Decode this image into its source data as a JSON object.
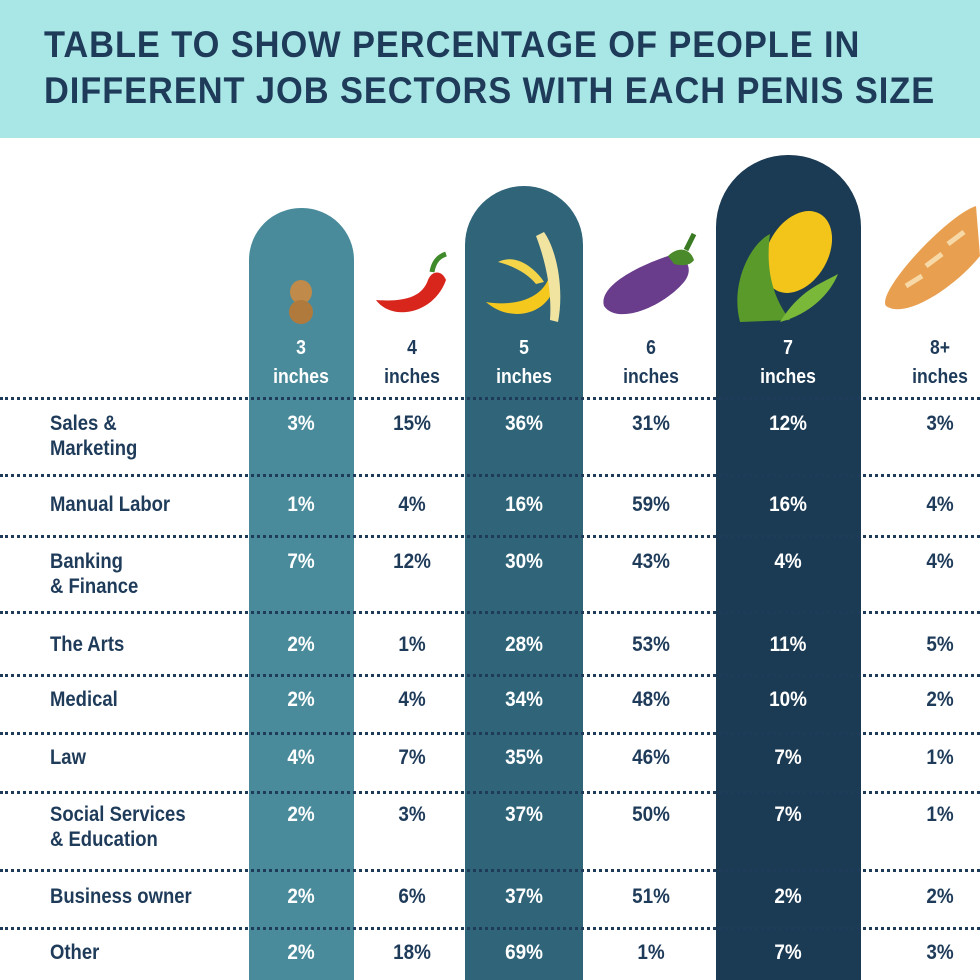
{
  "title": "TABLE TO SHOW PERCENTAGE OF PEOPLE IN\nDIFFERENT JOB SECTORS WITH EACH PENIS SIZE",
  "colors": {
    "banner": "#a9e7e6",
    "text": "#1f3b5a",
    "col_3in": "#4a8b9b",
    "col_5in": "#2f6479",
    "col_7in": "#1b3a53"
  },
  "chart_data": {
    "type": "table",
    "title": "TABLE TO SHOW PERCENTAGE OF PEOPLE IN DIFFERENT JOB SECTORS WITH EACH PENIS SIZE",
    "columns": [
      {
        "label": "3\ninches",
        "icon": "peanut-icon"
      },
      {
        "label": "4\ninches",
        "icon": "chili-pepper-icon"
      },
      {
        "label": "5\ninches",
        "icon": "banana-icon"
      },
      {
        "label": "6\ninches",
        "icon": "eggplant-icon"
      },
      {
        "label": "7\ninches",
        "icon": "corn-icon"
      },
      {
        "label": "8+\ninches",
        "icon": "baguette-icon"
      }
    ],
    "rows": [
      {
        "label": "Sales &\nMarketing",
        "values": [
          "3%",
          "15%",
          "36%",
          "31%",
          "12%",
          "3%"
        ]
      },
      {
        "label": "Manual Labor",
        "values": [
          "1%",
          "4%",
          "16%",
          "59%",
          "16%",
          "4%"
        ]
      },
      {
        "label": "Banking\n& Finance",
        "values": [
          "7%",
          "12%",
          "30%",
          "43%",
          "4%",
          "4%"
        ]
      },
      {
        "label": "The Arts",
        "values": [
          "2%",
          "1%",
          "28%",
          "53%",
          "11%",
          "5%"
        ]
      },
      {
        "label": "Medical",
        "values": [
          "2%",
          "4%",
          "34%",
          "48%",
          "10%",
          "2%"
        ]
      },
      {
        "label": "Law",
        "values": [
          "4%",
          "7%",
          "35%",
          "46%",
          "7%",
          "1%"
        ]
      },
      {
        "label": "Social Services\n& Education",
        "values": [
          "2%",
          "3%",
          "37%",
          "50%",
          "7%",
          "1%"
        ]
      },
      {
        "label": "Business owner",
        "values": [
          "2%",
          "6%",
          "37%",
          "51%",
          "2%",
          "2%"
        ]
      },
      {
        "label": "Other",
        "values": [
          "2%",
          "18%",
          "69%",
          "1%",
          "7%",
          "3%"
        ]
      }
    ]
  }
}
